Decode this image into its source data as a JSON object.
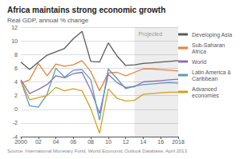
{
  "chart_data": {
    "type": "line",
    "title": "Africa maintains strong economic growth",
    "subtitle": "Real GDP, annual % change",
    "source": "Source: International Monetary Fund, World Economic Outlook Database, April 2013",
    "x": [
      2000,
      2001,
      2002,
      2003,
      2004,
      2005,
      2006,
      2007,
      2008,
      2009,
      2010,
      2011,
      2012,
      2013,
      2014,
      2015,
      2016,
      2017,
      2018
    ],
    "series": [
      {
        "name": "Developing Asia",
        "color": "#5a5a5a",
        "values": [
          6.9,
          5.8,
          6.9,
          7.9,
          8.4,
          8.9,
          10.3,
          11.4,
          7.0,
          6.9,
          9.7,
          7.8,
          6.4,
          6.5,
          6.7,
          6.8,
          6.9,
          7.0,
          7.1
        ]
      },
      {
        "name": "Sub-Saharan Africa",
        "color": "#e8823a",
        "values": [
          3.8,
          4.3,
          6.7,
          4.9,
          6.6,
          6.3,
          6.5,
          7.1,
          5.5,
          2.7,
          5.3,
          5.4,
          4.9,
          5.4,
          5.9,
          5.9,
          5.8,
          5.7,
          5.6
        ]
      },
      {
        "name": "World",
        "color": "#8b6fb0",
        "values": [
          4.3,
          2.3,
          2.9,
          3.6,
          4.9,
          4.6,
          5.2,
          5.4,
          2.8,
          -0.6,
          5.1,
          3.9,
          3.2,
          3.3,
          4.0,
          4.1,
          4.2,
          4.3,
          4.4
        ]
      },
      {
        "name": "Latin America & Caribbean",
        "color": "#5a9bba",
        "values": [
          4.1,
          0.5,
          0.3,
          2.2,
          6.0,
          4.7,
          5.7,
          5.8,
          4.3,
          -1.6,
          5.9,
          4.5,
          3.0,
          3.4,
          3.6,
          3.7,
          3.8,
          3.9,
          3.8
        ]
      },
      {
        "name": "Advanced economies",
        "color": "#d4a020",
        "values": [
          4.1,
          1.4,
          1.7,
          2.0,
          3.2,
          2.7,
          3.0,
          2.7,
          0.1,
          -3.5,
          3.0,
          1.6,
          1.2,
          1.3,
          2.2,
          2.3,
          2.4,
          2.5,
          2.5
        ]
      }
    ],
    "xlim": [
      2000,
      2018
    ],
    "xticks": [
      2000,
      {
        "value": 2002,
        "label": "02"
      },
      {
        "value": 2004,
        "label": "04"
      },
      {
        "value": 2006,
        "label": "06"
      },
      {
        "value": 2008,
        "label": "08"
      },
      {
        "value": 2010,
        "label": "10"
      },
      {
        "value": 2012,
        "label": "12"
      },
      {
        "value": 2014,
        "label": "14"
      },
      {
        "value": 2016,
        "label": "16"
      },
      2018
    ],
    "ylim": [
      -4,
      12
    ],
    "yticks": [
      -4,
      -2,
      0,
      2,
      4,
      6,
      8,
      10,
      12
    ],
    "grid": true,
    "legend": "right",
    "projected_region": {
      "start": 2013,
      "label": "Projected"
    }
  }
}
